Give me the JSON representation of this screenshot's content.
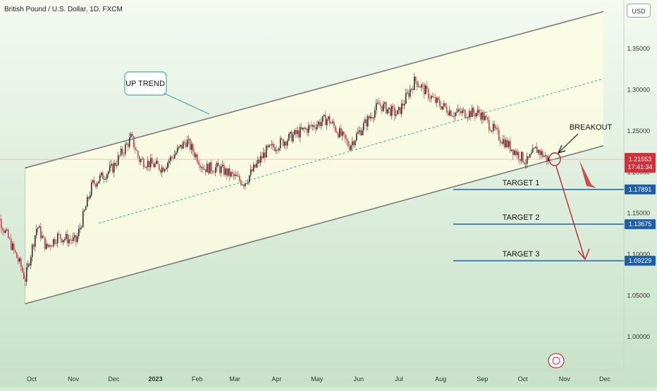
{
  "header": {
    "symbol_title": "British Pound / U.S. Dollar, 1D, FXCM",
    "currency": "USD"
  },
  "colors": {
    "up_candle": "#2c2c2c",
    "down_candle": "#d63a45",
    "channel_line": "#7b7b7b",
    "channel_fill": "#fbfbe2",
    "midline": "#3aa49a",
    "target_line": "#2c6fa8",
    "target_badge": "#1f5fa6",
    "price_badge": "#d32f3a",
    "arrow": "#c0262e"
  },
  "chart_data": {
    "type": "candlestick",
    "title": "British Pound / U.S. Dollar, 1D, FXCM",
    "x_ticks": [
      "Oct",
      "Nov",
      "Dec",
      "2023",
      "Feb",
      "Mar",
      "Apr",
      "May",
      "Jun",
      "Jul",
      "Aug",
      "Sep",
      "Oct",
      "Nov",
      "Dec"
    ],
    "y_ticks": [
      "1.35000",
      "1.30000",
      "1.25000",
      "1.20000",
      "1.15000",
      "1.10000",
      "1.05000",
      "1.00000"
    ],
    "ylim": [
      0.965,
      1.418
    ],
    "approx_close_path": [
      {
        "date": "2022-09-01",
        "close": 1.165
      },
      {
        "date": "2022-09-23",
        "close": 1.085
      },
      {
        "date": "2022-09-26",
        "close": 1.069
      },
      {
        "date": "2022-10-05",
        "close": 1.135
      },
      {
        "date": "2022-10-12",
        "close": 1.108
      },
      {
        "date": "2022-10-20",
        "close": 1.122
      },
      {
        "date": "2022-11-03",
        "close": 1.116
      },
      {
        "date": "2022-11-15",
        "close": 1.185
      },
      {
        "date": "2022-11-30",
        "close": 1.205
      },
      {
        "date": "2022-12-14",
        "close": 1.242
      },
      {
        "date": "2022-12-20",
        "close": 1.215
      },
      {
        "date": "2023-01-06",
        "close": 1.205
      },
      {
        "date": "2023-01-24",
        "close": 1.238
      },
      {
        "date": "2023-02-06",
        "close": 1.205
      },
      {
        "date": "2023-02-17",
        "close": 1.205
      },
      {
        "date": "2023-03-08",
        "close": 1.187
      },
      {
        "date": "2023-03-24",
        "close": 1.225
      },
      {
        "date": "2023-04-14",
        "close": 1.245
      },
      {
        "date": "2023-05-09",
        "close": 1.265
      },
      {
        "date": "2023-05-25",
        "close": 1.232
      },
      {
        "date": "2023-06-16",
        "close": 1.282
      },
      {
        "date": "2023-06-30",
        "close": 1.27
      },
      {
        "date": "2023-07-13",
        "close": 1.312
      },
      {
        "date": "2023-07-27",
        "close": 1.287
      },
      {
        "date": "2023-08-10",
        "close": 1.272
      },
      {
        "date": "2023-08-30",
        "close": 1.272
      },
      {
        "date": "2023-09-14",
        "close": 1.242
      },
      {
        "date": "2023-10-04",
        "close": 1.212
      },
      {
        "date": "2023-10-11",
        "close": 1.228
      },
      {
        "date": "2023-10-20",
        "close": 1.215
      }
    ],
    "current_price": {
      "value": 1.21553,
      "label": "1.21553",
      "countdown": "17:41:34"
    },
    "channel": {
      "upper_start": {
        "date": "2022-09-26",
        "price": 1.205
      },
      "upper_end": {
        "date": "2023-11-30",
        "price": 1.395
      },
      "lower_start": {
        "date": "2022-09-26",
        "price": 1.04
      },
      "lower_end": {
        "date": "2023-11-30",
        "price": 1.232
      }
    },
    "targets": [
      {
        "label": "TARGET 1",
        "price_label": "1.17891",
        "value": 1.17891
      },
      {
        "label": "TARGET 2",
        "price_label": "1.13675",
        "value": 1.13675
      },
      {
        "label": "TARGET 3",
        "price_label": "1.09229",
        "value": 1.09229
      }
    ],
    "annotations": {
      "trend_label": "UP TREND",
      "breakout_label": "BREAKOUT"
    }
  }
}
